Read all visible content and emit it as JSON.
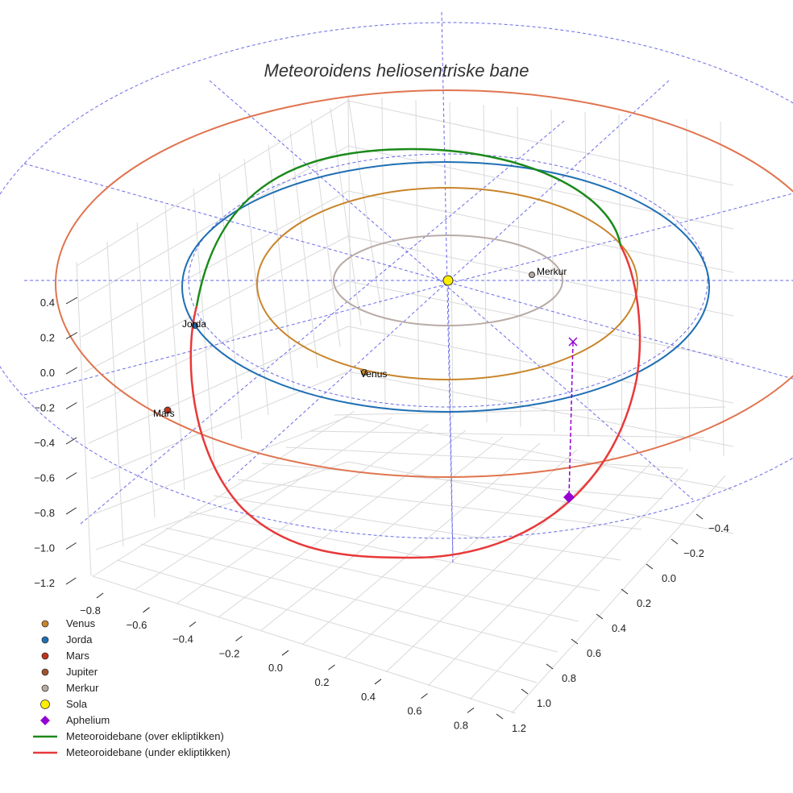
{
  "chart_data": {
    "type": "3d-orbit",
    "title": "Meteoroidens heliosentriske bane",
    "axes": {
      "x_ticks": [
        "−0.8",
        "−0.6",
        "−0.4",
        "−0.2",
        "0.0",
        "0.2",
        "0.4",
        "0.6",
        "0.8"
      ],
      "y_ticks": [
        "−0.4",
        "−0.2",
        "0.0",
        "0.2",
        "0.4",
        "0.6",
        "0.8",
        "1.0",
        "1.2"
      ],
      "z_ticks": [
        "0.4",
        "0.2",
        "0.0",
        "−0.2",
        "−0.4",
        "−0.6",
        "−0.8",
        "−1.0",
        "−1.2"
      ]
    },
    "planet_labels": {
      "venus": "Venus",
      "earth": "Jorda",
      "mars": "Mars",
      "mercury": "Merkur"
    },
    "colors": {
      "venus": "#c9852a",
      "earth": "#1f6fb4",
      "mars": "#c2321c",
      "jupiter": "#a0522d",
      "mercury": "#b8aba5",
      "sun": "#ffee00",
      "aphelion": "#9400d3",
      "meteoroid_above": "#1a8a1a",
      "meteoroid_below": "#e8393a",
      "grid": "#d9d9d9",
      "reference": "#6a6ae8"
    },
    "legend": [
      {
        "label": "Venus",
        "marker": "dot",
        "color": "#c9852a"
      },
      {
        "label": "Jorda",
        "marker": "dot",
        "color": "#1f6fb4"
      },
      {
        "label": "Mars",
        "marker": "dot",
        "color": "#c2321c"
      },
      {
        "label": "Jupiter",
        "marker": "dot",
        "color": "#a0522d"
      },
      {
        "label": "Merkur",
        "marker": "dot",
        "color": "#b8aba5"
      },
      {
        "label": "Sola",
        "marker": "sun",
        "color": "#ffee00"
      },
      {
        "label": "Aphelium",
        "marker": "diamond",
        "color": "#9400d3"
      },
      {
        "label": "Meteoroidebane (over ekliptikken)",
        "marker": "line",
        "color": "#1a8a1a"
      },
      {
        "label": "Meteoroidebane (under ekliptikken)",
        "marker": "line",
        "color": "#e8393a"
      }
    ]
  }
}
